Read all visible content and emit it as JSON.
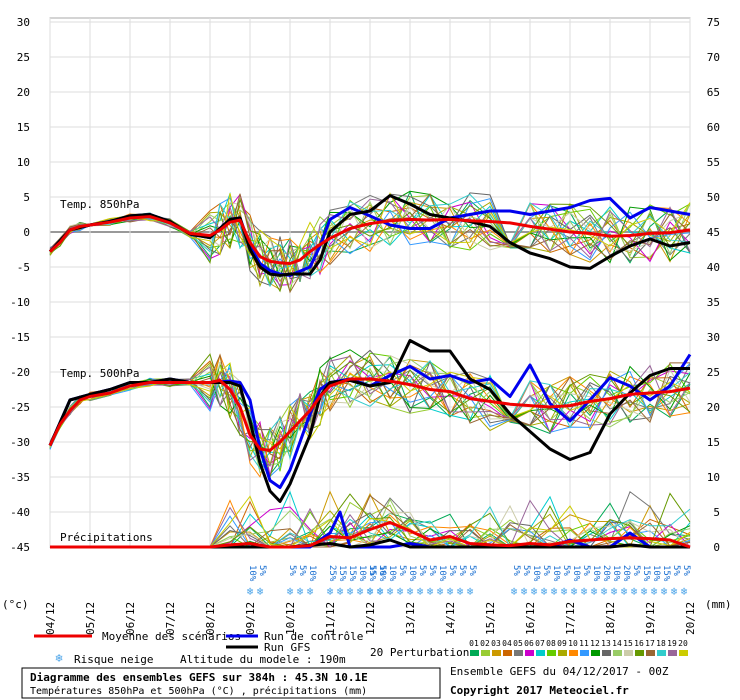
{
  "chart_data": {
    "type": "line",
    "x_dates": [
      "04/12",
      "05/12",
      "06/12",
      "07/12",
      "08/12",
      "09/12",
      "10/12",
      "11/12",
      "12/12",
      "13/12",
      "14/12",
      "15/12",
      "16/12",
      "17/12",
      "18/12",
      "19/12",
      "20/12"
    ],
    "left_axis": {
      "unit": "(°c)",
      "ticks": [
        30,
        25,
        20,
        15,
        10,
        5,
        0,
        -5,
        -10,
        -15,
        -20,
        -25,
        -30,
        -35,
        -40,
        -45
      ],
      "range": [
        -45,
        30
      ]
    },
    "right_axis": {
      "unit": "(mm)",
      "ticks": [
        75,
        70,
        65,
        60,
        55,
        50,
        45,
        40,
        35,
        30,
        25,
        20,
        15,
        10,
        5,
        0
      ]
    },
    "section_labels": {
      "t850": "Temp. 850hPa",
      "t500": "Temp. 500hPa",
      "precip": "Précipitations"
    },
    "series": [
      {
        "name": "Moyenne des scénarios",
        "group": "t850",
        "color": "#ee0000",
        "x": [
          0,
          0.25,
          0.5,
          0.75,
          1,
          1.5,
          2,
          2.5,
          3,
          3.5,
          4,
          4.25,
          4.5,
          4.75,
          5,
          5.25,
          5.5,
          5.75,
          6,
          6.25,
          6.5,
          6.75,
          7,
          7.5,
          8,
          8.5,
          9,
          9.5,
          10,
          10.5,
          11,
          11.5,
          12,
          12.5,
          13,
          13.5,
          14,
          14.5,
          15,
          15.5,
          16
        ],
        "y": [
          -2.8,
          -1.5,
          0.3,
          0.8,
          1,
          1.4,
          2,
          2.2,
          1.3,
          -0.2,
          -0.5,
          0.3,
          1.4,
          1.7,
          -1.5,
          -3.5,
          -4.2,
          -4.4,
          -4.5,
          -4,
          -2.8,
          -1.8,
          -0.9,
          0.5,
          1.2,
          1.6,
          1.8,
          1.7,
          1.8,
          1.6,
          1.5,
          1.3,
          0.8,
          0.4,
          0,
          -0.2,
          -0.6,
          -0.5,
          -0.2,
          -0.1,
          0.3
        ]
      },
      {
        "name": "Run de contrôle",
        "group": "t850",
        "color": "#0000ee",
        "x": [
          0,
          0.5,
          1,
          1.5,
          2,
          2.5,
          3,
          3.5,
          4,
          4.5,
          4.75,
          5,
          5.25,
          5.5,
          5.75,
          6,
          6.5,
          6.75,
          7,
          7.5,
          8,
          8.5,
          9,
          9.5,
          10,
          10.5,
          11,
          11.5,
          12,
          12.5,
          13,
          13.5,
          14,
          14.5,
          15,
          15.5,
          16
        ],
        "y": [
          -2.8,
          0.3,
          1,
          1.5,
          2.3,
          2.5,
          1.5,
          -0.3,
          -0.8,
          1.8,
          2,
          -2,
          -4.5,
          -5.5,
          -6,
          -6.2,
          -5,
          -2,
          1.8,
          3.5,
          2.3,
          1,
          0.5,
          0.5,
          2,
          2.5,
          3,
          3,
          2.5,
          3,
          3.5,
          4.5,
          4.8,
          2,
          3.5,
          3,
          2.5
        ]
      },
      {
        "name": "Run GFS",
        "group": "t850",
        "color": "#000000",
        "x": [
          0,
          0.5,
          1,
          1.5,
          2,
          2.5,
          3,
          3.5,
          4,
          4.5,
          4.75,
          5,
          5.25,
          5.5,
          5.75,
          6,
          6.5,
          6.75,
          7,
          7.5,
          8,
          8.5,
          9,
          9.5,
          10,
          10.5,
          11,
          11.5,
          12,
          12.5,
          13,
          13.5,
          14,
          14.5,
          15,
          15.5,
          16
        ],
        "y": [
          -2.8,
          0.3,
          1,
          1.5,
          2.3,
          2.5,
          1.5,
          -0.3,
          -0.8,
          1.8,
          2,
          -2.5,
          -5,
          -6,
          -6.2,
          -6,
          -6,
          -4,
          0,
          2.5,
          3,
          5.2,
          4,
          2.5,
          2,
          1.5,
          0.8,
          -1.5,
          -3,
          -3.8,
          -5,
          -5.2,
          -3.5,
          -2,
          -1,
          -2,
          -1.5
        ]
      },
      {
        "name": "Moyenne des scénarios",
        "group": "t500",
        "color": "#ee0000",
        "x": [
          0,
          0.25,
          0.5,
          0.75,
          1,
          1.5,
          2,
          2.5,
          3,
          3.5,
          4,
          4.25,
          4.5,
          4.75,
          5,
          5.25,
          5.5,
          5.75,
          6,
          6.25,
          6.5,
          6.75,
          7,
          7.5,
          8,
          8.5,
          9,
          9.5,
          10,
          10.5,
          11,
          11.5,
          12,
          12.5,
          13,
          13.5,
          14,
          14.5,
          15,
          15.5,
          16
        ],
        "y": [
          -30.5,
          -27.5,
          -25.5,
          -24,
          -23.5,
          -23,
          -22,
          -21.5,
          -21.5,
          -21.5,
          -21.5,
          -21.2,
          -22.5,
          -25,
          -29,
          -31,
          -31.2,
          -30,
          -28.5,
          -27,
          -25.5,
          -23.5,
          -22,
          -21,
          -21,
          -21.3,
          -21.8,
          -22.5,
          -22.8,
          -23.8,
          -24.2,
          -24.6,
          -24.8,
          -25,
          -24.8,
          -24.2,
          -23.8,
          -23.2,
          -23,
          -22.8,
          -22.3
        ]
      },
      {
        "name": "Run de contrôle",
        "group": "t500",
        "color": "#0000ee",
        "x": [
          0,
          0.5,
          1,
          1.5,
          2,
          2.5,
          3,
          3.5,
          4,
          4.5,
          4.75,
          5,
          5.25,
          5.5,
          5.75,
          6,
          6.5,
          6.75,
          7,
          7.5,
          8,
          8.5,
          9,
          9.5,
          10,
          10.5,
          11,
          11.5,
          12,
          12.5,
          13,
          13.5,
          14,
          14.5,
          15,
          15.5,
          16
        ],
        "y": [
          -30.5,
          -24,
          -23.2,
          -22.5,
          -21.5,
          -21.5,
          -21,
          -21.5,
          -21.5,
          -21.3,
          -21.5,
          -24,
          -31,
          -35.5,
          -36.5,
          -34,
          -26,
          -22.5,
          -21.5,
          -21,
          -22,
          -20.5,
          -19.2,
          -21,
          -20.5,
          -21.5,
          -21,
          -23.5,
          -19,
          -24.5,
          -27,
          -24,
          -20.8,
          -22,
          -24,
          -22,
          -17.5
        ]
      },
      {
        "name": "Run GFS",
        "group": "t500",
        "color": "#000000",
        "x": [
          0,
          0.5,
          1,
          1.5,
          2,
          2.5,
          3,
          3.5,
          4,
          4.5,
          4.75,
          5,
          5.25,
          5.5,
          5.75,
          6,
          6.5,
          6.75,
          7,
          7.5,
          8,
          8.5,
          9,
          9.5,
          10,
          10.5,
          11,
          11.5,
          12,
          12.5,
          13,
          13.5,
          14,
          14.5,
          15,
          15.5,
          16
        ],
        "y": [
          -30.5,
          -24,
          -23.2,
          -22.5,
          -21.5,
          -21.5,
          -21,
          -21.5,
          -21.5,
          -21.5,
          -22,
          -27,
          -33,
          -37,
          -38.5,
          -36,
          -29,
          -23.5,
          -21.5,
          -21.2,
          -22,
          -21.5,
          -15.5,
          -17,
          -17,
          -21,
          -22.5,
          -26,
          -28.5,
          -31,
          -32.5,
          -31.5,
          -26,
          -23,
          -20.5,
          -19.5,
          -19.5
        ]
      },
      {
        "name": "Moyenne des scénarios",
        "group": "precip",
        "color": "#ee0000",
        "x": [
          0,
          2,
          4,
          4.5,
          5,
          5.5,
          6,
          6.5,
          7,
          7.5,
          8,
          8.5,
          9,
          9.5,
          10,
          10.5,
          11,
          11.5,
          12,
          12.5,
          13,
          13.5,
          14,
          14.5,
          15,
          15.5,
          16
        ],
        "y": [
          0,
          0,
          0,
          0.3,
          0.5,
          0,
          0,
          0.2,
          1.5,
          1.3,
          2.5,
          3.5,
          2.3,
          1,
          1.5,
          0.5,
          0.3,
          0.2,
          0.5,
          0.3,
          0.8,
          1,
          1.2,
          1.3,
          1.2,
          1,
          0
        ]
      },
      {
        "name": "Run de contrôle",
        "group": "precip",
        "color": "#0000ee",
        "x": [
          0,
          4,
          5,
          6,
          6.5,
          7,
          7.25,
          7.5,
          8,
          8.5,
          9,
          9.5,
          10,
          10.5,
          11,
          11.5,
          12,
          12.5,
          13,
          13.5,
          14,
          14.5,
          15,
          15.5,
          16
        ],
        "y": [
          0,
          0,
          0,
          0,
          0,
          2,
          5,
          0,
          0,
          0,
          0.5,
          0,
          0,
          0,
          0,
          0,
          0,
          0,
          1,
          0,
          0,
          2,
          0,
          0,
          0
        ]
      },
      {
        "name": "Run GFS",
        "group": "precip",
        "color": "#000000",
        "x": [
          0,
          4,
          5,
          6,
          7,
          7.5,
          8,
          8.5,
          9,
          9.5,
          10,
          10.5,
          11,
          11.5,
          12,
          12.5,
          13,
          13.5,
          14,
          14.5,
          15,
          15.5,
          16
        ],
        "y": [
          0,
          0,
          0,
          0,
          0.5,
          0,
          0.3,
          1,
          0,
          0,
          0,
          0,
          0,
          0,
          0,
          0,
          0,
          0,
          0,
          0.3,
          0,
          0,
          0
        ]
      }
    ],
    "snow_risk": [
      {
        "x": 5,
        "texts": [
          "10%",
          "5%"
        ]
      },
      {
        "x": 6,
        "texts": [
          "5%",
          "5%",
          "10%"
        ]
      },
      {
        "x": 7,
        "texts": [
          "25%",
          "15%",
          "15%",
          "10%",
          "15%",
          "10%"
        ]
      },
      {
        "x": 8,
        "texts": [
          "5%",
          "5%",
          "10%",
          "5%",
          "10%",
          "5%",
          "5%",
          "10%",
          "5%",
          "5%",
          "5%"
        ]
      },
      {
        "x": 11.6,
        "texts": [
          "5%",
          "5%",
          "10%",
          "5%",
          "10%",
          "5%",
          "10%",
          "5%",
          "10%",
          "20%",
          "10%",
          "20%",
          "5%",
          "15%",
          "10%",
          "15%",
          "5%",
          "5%"
        ]
      }
    ],
    "legend": {
      "mean": "Moyenne des scénarios",
      "control": "Run de contrôle",
      "gfs": "Run GFS",
      "perturb": "20 Perturbations",
      "snow": "Risque neige",
      "altitude": "Altitude du modele : 190m",
      "perturb_numbers": [
        "01",
        "02",
        "03",
        "04",
        "05",
        "06",
        "07",
        "08",
        "09",
        "10",
        "11",
        "12",
        "13",
        "14",
        "15",
        "16",
        "17",
        "18",
        "19",
        "20"
      ],
      "perturb_colors": [
        "#00aa55",
        "#99cc33",
        "#cc9900",
        "#cc6600",
        "#777777",
        "#cc00cc",
        "#00cccc",
        "#66cc00",
        "#aaaa00",
        "#ff8800",
        "#3399ff",
        "#009900",
        "#666666",
        "#99cc66",
        "#ccccaa",
        "#669900",
        "#996633",
        "#33cccc",
        "#996699",
        "#cccc00"
      ]
    },
    "info": {
      "title": "Diagramme des ensembles GEFS sur 384h : 45.3N 10.1E",
      "subtitle": "Températures 850hPa et 500hPa (°C) , précipitations (mm)",
      "run": "Ensemble GEFS du 04/12/2017 - 00Z",
      "copyright": "Copyright 2017 Meteociel.fr"
    },
    "colors": {
      "grid": "#dddddd",
      "zero_line": "#999999"
    }
  }
}
